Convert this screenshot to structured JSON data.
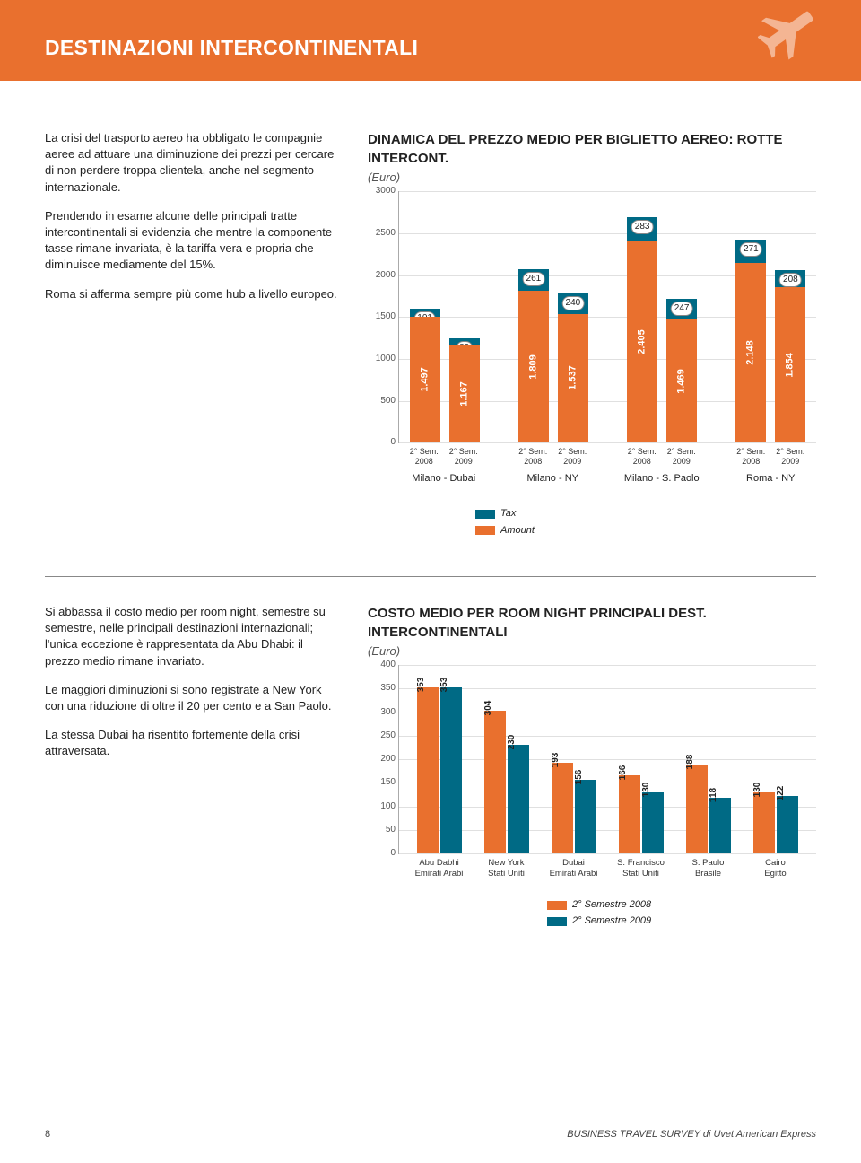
{
  "header": {
    "title": "DESTINAZIONI INTERCONTINENTALI"
  },
  "colors": {
    "orange": "#e9702e",
    "teal": "#006a85",
    "grid": "#e0e0e0",
    "axis": "#aaaaaa",
    "bg": "#ffffff"
  },
  "text1": {
    "p1": "La crisi del trasporto aereo ha obbligato le compagnie aeree ad attuare una diminuzione dei prezzi per cercare di non perdere troppa clientela, anche nel segmento internazionale.",
    "p2": "Prendendo in esame alcune delle principali tratte intercontinentali si evidenzia che mentre la componente tasse rimane invariata, è la tariffa vera e propria che diminuisce mediamente del 15%.",
    "p3": "Roma si afferma sempre più come hub a livello europeo."
  },
  "chart1": {
    "title": "DINAMICA DEL PREZZO MEDIO PER BIGLIETTO AEREO: ROTTE INTERCONT.",
    "subtitle": "(Euro)",
    "ylim": [
      0,
      3000
    ],
    "yticks": [
      0,
      500,
      1000,
      1500,
      2000,
      2500,
      3000
    ],
    "legend": {
      "tax": "Tax",
      "amount": "Amount"
    },
    "groups": [
      {
        "route": "Milano - Dubai",
        "bars": [
          {
            "period1": "2° Sem.",
            "period2": "2008",
            "tax": 101,
            "amount": 1497,
            "amount_label": "1.497"
          },
          {
            "period1": "2° Sem.",
            "period2": "2009",
            "tax": 80,
            "amount": 1167,
            "amount_label": "1.167"
          }
        ]
      },
      {
        "route": "Milano - NY",
        "bars": [
          {
            "period1": "2° Sem.",
            "period2": "2008",
            "tax": 261,
            "amount": 1809,
            "amount_label": "1.809"
          },
          {
            "period1": "2° Sem.",
            "period2": "2009",
            "tax": 240,
            "amount": 1537,
            "amount_label": "1.537"
          }
        ]
      },
      {
        "route": "Milano - S. Paolo",
        "bars": [
          {
            "period1": "2° Sem.",
            "period2": "2008",
            "tax": 283,
            "amount": 2405,
            "amount_label": "2.405"
          },
          {
            "period1": "2° Sem.",
            "period2": "2009",
            "tax": 247,
            "amount": 1469,
            "amount_label": "1.469"
          }
        ]
      },
      {
        "route": "Roma - NY",
        "bars": [
          {
            "period1": "2° Sem.",
            "period2": "2008",
            "tax": 271,
            "amount": 2148,
            "amount_label": "2.148"
          },
          {
            "period1": "2° Sem.",
            "period2": "2009",
            "tax": 208,
            "amount": 1854,
            "amount_label": "1.854"
          }
        ]
      }
    ]
  },
  "text2": {
    "p1": "Si abbassa il costo medio per room night, semestre su semestre, nelle principali destinazioni internazionali; l'unica eccezione è rappresentata da Abu Dhabi: il prezzo medio rimane invariato.",
    "p2": "Le maggiori diminuzioni si sono registrate a New York con una riduzione di oltre il 20 per cento e a San Paolo.",
    "p3": "La stessa Dubai ha risentito fortemente della crisi attraversata."
  },
  "chart2": {
    "title": "COSTO MEDIO PER ROOM NIGHT PRINCIPALI DEST. INTERCONTINENTALI",
    "subtitle": "(Euro)",
    "ylim": [
      0,
      400
    ],
    "yticks": [
      0,
      50,
      100,
      150,
      200,
      250,
      300,
      350,
      400
    ],
    "legend": {
      "a": "2° Semestre 2008",
      "b": "2° Semestre 2009"
    },
    "items": [
      {
        "name1": "Abu Dabhi",
        "name2": "Emirati Arabi",
        "a": 353,
        "b": 353
      },
      {
        "name1": "New York",
        "name2": "Stati Uniti",
        "a": 304,
        "b": 230
      },
      {
        "name1": "Dubai",
        "name2": "Emirati Arabi",
        "a": 193,
        "b": 156
      },
      {
        "name1": "S. Francisco",
        "name2": "Stati Uniti",
        "a": 166,
        "b": 130
      },
      {
        "name1": "S. Paulo",
        "name2": "Brasile",
        "a": 188,
        "b": 118
      },
      {
        "name1": "Cairo",
        "name2": "Egitto",
        "a": 130,
        "b": 122
      }
    ]
  },
  "footer": {
    "page": "8",
    "source": "BUSINESS TRAVEL SURVEY di Uvet American Express"
  }
}
